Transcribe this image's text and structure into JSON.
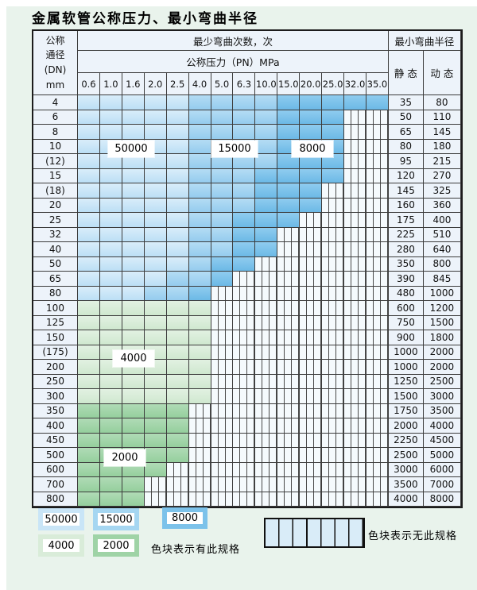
{
  "title": "金属软管公称压力、最小弯曲半径",
  "table": {
    "dn_header_lines": [
      "公称",
      "通径",
      "(DN)",
      "mm"
    ],
    "bend_cycles_header": "最少弯曲次数，次",
    "pressure_header": "公称压力（PN）MPa",
    "radius_header": "最小弯曲半径",
    "static_header": "静 态",
    "dynamic_header": "动 态",
    "pressure_columns": [
      "0.6",
      "1.0",
      "1.6",
      "2.0",
      "2.5",
      "4.0",
      "5.0",
      "6.3",
      "10.0",
      "15.0",
      "20.0",
      "25.0",
      "32.0",
      "35.0"
    ],
    "zone_legend": {
      "L": "50000",
      "M": "15000",
      "D": "8000",
      "G": "4000",
      "g": "2000",
      "X": "no-spec"
    },
    "rows": [
      {
        "dn": "4",
        "map": "LLLLLMMMMDDDDD",
        "static": "35",
        "dynamic": "80"
      },
      {
        "dn": "6",
        "map": "LLLLLMMMMDDDXX",
        "static": "50",
        "dynamic": "110"
      },
      {
        "dn": "8",
        "map": "LLLLLMMMMDDDXX",
        "static": "65",
        "dynamic": "145"
      },
      {
        "dn": "10",
        "map": "LLLLLMMMMDDDXX",
        "static": "80",
        "dynamic": "180"
      },
      {
        "dn": "(12)",
        "map": "LLLLLMMMMDDDXX",
        "static": "95",
        "dynamic": "215"
      },
      {
        "dn": "15",
        "map": "LLLLLMMMDDDDXX",
        "static": "120",
        "dynamic": "270"
      },
      {
        "dn": "(18)",
        "map": "LLLLLMMMDDDXXX",
        "static": "145",
        "dynamic": "325"
      },
      {
        "dn": "20",
        "map": "LLLLLMMMDDDXXX",
        "static": "160",
        "dynamic": "360"
      },
      {
        "dn": "25",
        "map": "LLLLLMMDDDXXXX",
        "static": "175",
        "dynamic": "400"
      },
      {
        "dn": "32",
        "map": "LLLLLMMDDXXXXX",
        "static": "225",
        "dynamic": "510"
      },
      {
        "dn": "40",
        "map": "LLLLLMMDDXXXXX",
        "static": "280",
        "dynamic": "640"
      },
      {
        "dn": "50",
        "map": "LLLLLMDDXXXXXX",
        "static": "350",
        "dynamic": "800"
      },
      {
        "dn": "65",
        "map": "LLLLMMDXXXXXXX",
        "static": "390",
        "dynamic": "845"
      },
      {
        "dn": "80",
        "map": "LLLMMDXXXXXXXX",
        "static": "480",
        "dynamic": "1000"
      },
      {
        "dn": "100",
        "map": "GGGGGGXXXXXXXX",
        "static": "600",
        "dynamic": "1200"
      },
      {
        "dn": "125",
        "map": "GGGGGGXXXXXXXX",
        "static": "750",
        "dynamic": "1500"
      },
      {
        "dn": "150",
        "map": "GGGGGGXXXXXXXX",
        "static": "900",
        "dynamic": "1800"
      },
      {
        "dn": "(175)",
        "map": "GGGGGGXXXXXXXX",
        "static": "1000",
        "dynamic": "2000"
      },
      {
        "dn": "200",
        "map": "GGGGGGXXXXXXXX",
        "static": "1000",
        "dynamic": "2000"
      },
      {
        "dn": "250",
        "map": "GGGGGGXXXXXXXX",
        "static": "1250",
        "dynamic": "2500"
      },
      {
        "dn": "300",
        "map": "GGGGGGXXXXXXXX",
        "static": "1500",
        "dynamic": "3000"
      },
      {
        "dn": "350",
        "map": "gggggXXXXXXXXX",
        "static": "1750",
        "dynamic": "3500"
      },
      {
        "dn": "400",
        "map": "gggggXXXXXXXXX",
        "static": "2000",
        "dynamic": "4000"
      },
      {
        "dn": "450",
        "map": "gggggXXXXXXXXX",
        "static": "2250",
        "dynamic": "4500"
      },
      {
        "dn": "500",
        "map": "gggggXXXXXXXXX",
        "static": "2500",
        "dynamic": "5000"
      },
      {
        "dn": "600",
        "map": "ggggXXXXXXXXXX",
        "static": "3000",
        "dynamic": "6000"
      },
      {
        "dn": "700",
        "map": "gggXXXXXXXXXXX",
        "static": "3500",
        "dynamic": "7000"
      },
      {
        "dn": "800",
        "map": "gggXXXXXXXXXXX",
        "static": "4000",
        "dynamic": "8000"
      }
    ]
  },
  "overlays": [
    {
      "label": "50000"
    },
    {
      "label": "15000"
    },
    {
      "label": "8000"
    },
    {
      "label": "4000"
    },
    {
      "label": "2000"
    }
  ],
  "legend": {
    "items": [
      {
        "label": "50000",
        "color": "#c9e5f7"
      },
      {
        "label": "15000",
        "color": "#a5d6f1"
      },
      {
        "label": "8000",
        "color": "#7cc2ea"
      },
      {
        "label": "4000",
        "color": "#d9ecd9"
      },
      {
        "label": "2000",
        "color": "#9fd3a6"
      }
    ],
    "has_spec_text": "色块表示有此规格",
    "no_spec_text": "色块表示无此规格"
  },
  "colors": {
    "page_bg": "#e9f3ec",
    "cell_bg": "#edf3fa",
    "zone_50000": "#c7e4f6",
    "zone_15000": "#a5d6f1",
    "zone_8000": "#7cc2ea",
    "zone_4000": "#d9ecd9",
    "zone_2000": "#9fd3a6",
    "grid_line": "#3c3c3c"
  }
}
